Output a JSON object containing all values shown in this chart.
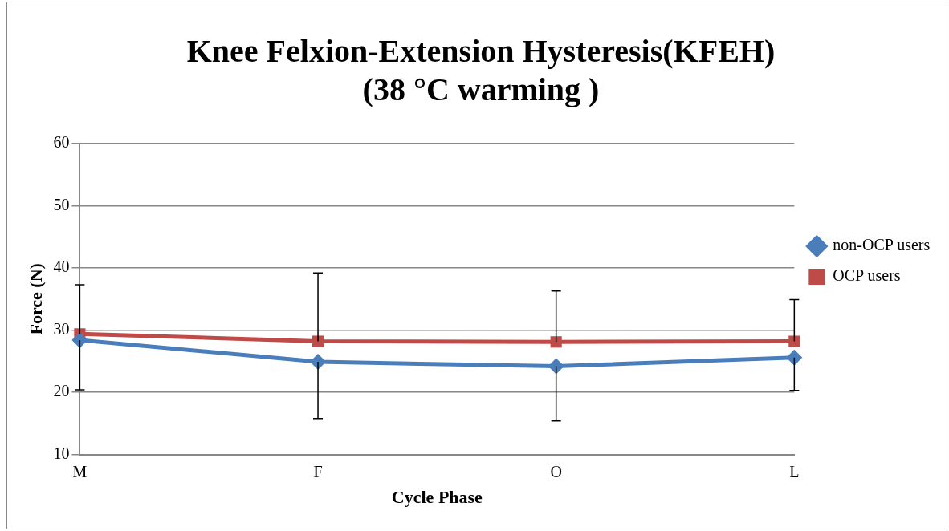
{
  "chart_data": {
    "type": "line",
    "title": "Knee Felxion-Extension Hysteresis(KFEH)\n(38 °C warming )",
    "xlabel": "Cycle Phase",
    "ylabel": "Force (N)",
    "categories": [
      "M",
      "F",
      "O",
      "L"
    ],
    "series": [
      {
        "name": "non-OCP users",
        "color": "#4a7ebb",
        "marker": "diamond",
        "values": [
          28.4,
          24.9,
          24.2,
          25.6
        ],
        "errors": [
          [
            20.4,
            28.4
          ],
          [
            15.8,
            24.9
          ],
          [
            15.4,
            24.2
          ],
          [
            20.3,
            25.6
          ]
        ]
      },
      {
        "name": "OCP users",
        "color": "#be4b48",
        "marker": "square",
        "values": [
          29.4,
          28.2,
          28.1,
          28.2
        ],
        "errors": [
          [
            29.4,
            37.3
          ],
          [
            28.2,
            39.2
          ],
          [
            28.1,
            36.3
          ],
          [
            28.2,
            34.9
          ]
        ]
      }
    ],
    "ylim": [
      10,
      60
    ],
    "yticks": [
      10,
      20,
      30,
      40,
      50,
      60
    ],
    "grid": "y",
    "legend": "right"
  }
}
